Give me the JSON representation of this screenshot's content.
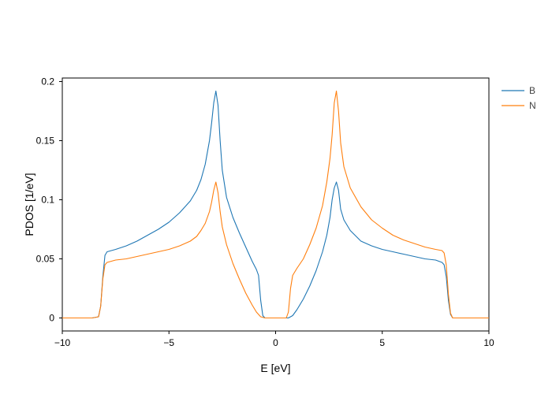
{
  "chart_data": {
    "type": "line",
    "title": "",
    "xlabel": "E [eV]",
    "ylabel": "PDOS [1/eV]",
    "xlim": [
      -10,
      10
    ],
    "ylim": [
      -0.011,
      0.203
    ],
    "grid": false,
    "legend_position": "right-top",
    "x_ticks": [
      {
        "value": -10,
        "label": "−10"
      },
      {
        "value": -5,
        "label": "−5"
      },
      {
        "value": 0,
        "label": "0"
      },
      {
        "value": 5,
        "label": "5"
      },
      {
        "value": 10,
        "label": "10"
      }
    ],
    "y_ticks": [
      {
        "value": 0,
        "label": "0"
      },
      {
        "value": 0.05,
        "label": "0.05"
      },
      {
        "value": 0.1,
        "label": "0.1"
      },
      {
        "value": 0.15,
        "label": "0.15"
      },
      {
        "value": 0.2,
        "label": "0.2"
      }
    ],
    "series": [
      {
        "name": "B",
        "color": "#1f77b4",
        "points": [
          [
            -10,
            0
          ],
          [
            -8.6,
            0
          ],
          [
            -8.3,
            0.001
          ],
          [
            -8.2,
            0.01
          ],
          [
            -8.1,
            0.035
          ],
          [
            -8.0,
            0.053
          ],
          [
            -7.9,
            0.056
          ],
          [
            -7.5,
            0.058
          ],
          [
            -7.0,
            0.061
          ],
          [
            -6.5,
            0.065
          ],
          [
            -6.0,
            0.07
          ],
          [
            -5.5,
            0.075
          ],
          [
            -5.0,
            0.081
          ],
          [
            -4.5,
            0.089
          ],
          [
            -4.0,
            0.099
          ],
          [
            -3.7,
            0.108
          ],
          [
            -3.5,
            0.117
          ],
          [
            -3.3,
            0.13
          ],
          [
            -3.1,
            0.15
          ],
          [
            -3.0,
            0.165
          ],
          [
            -2.9,
            0.182
          ],
          [
            -2.8,
            0.192
          ],
          [
            -2.7,
            0.18
          ],
          [
            -2.6,
            0.15
          ],
          [
            -2.5,
            0.125
          ],
          [
            -2.3,
            0.102
          ],
          [
            -2.0,
            0.085
          ],
          [
            -1.7,
            0.072
          ],
          [
            -1.4,
            0.06
          ],
          [
            -1.1,
            0.048
          ],
          [
            -0.9,
            0.041
          ],
          [
            -0.8,
            0.036
          ],
          [
            -0.7,
            0.015
          ],
          [
            -0.6,
            0.002
          ],
          [
            -0.5,
            0.0
          ],
          [
            0.0,
            0.0
          ],
          [
            0.4,
            0.0
          ],
          [
            0.6,
            0.0
          ],
          [
            0.8,
            0.002
          ],
          [
            1.0,
            0.007
          ],
          [
            1.3,
            0.016
          ],
          [
            1.6,
            0.027
          ],
          [
            1.9,
            0.04
          ],
          [
            2.2,
            0.056
          ],
          [
            2.4,
            0.07
          ],
          [
            2.55,
            0.085
          ],
          [
            2.65,
            0.1
          ],
          [
            2.75,
            0.11
          ],
          [
            2.85,
            0.115
          ],
          [
            2.95,
            0.108
          ],
          [
            3.05,
            0.092
          ],
          [
            3.2,
            0.083
          ],
          [
            3.5,
            0.074
          ],
          [
            4.0,
            0.065
          ],
          [
            4.5,
            0.061
          ],
          [
            5.0,
            0.058
          ],
          [
            5.5,
            0.056
          ],
          [
            6.0,
            0.054
          ],
          [
            6.5,
            0.052
          ],
          [
            7.0,
            0.05
          ],
          [
            7.5,
            0.049
          ],
          [
            7.8,
            0.047
          ],
          [
            7.9,
            0.045
          ],
          [
            8.0,
            0.035
          ],
          [
            8.1,
            0.015
          ],
          [
            8.2,
            0.003
          ],
          [
            8.3,
            0.0
          ],
          [
            10,
            0
          ]
        ]
      },
      {
        "name": "N",
        "color": "#ff7f0e",
        "points": [
          [
            -10,
            0
          ],
          [
            -8.6,
            0
          ],
          [
            -8.3,
            0.001
          ],
          [
            -8.2,
            0.01
          ],
          [
            -8.1,
            0.033
          ],
          [
            -8.0,
            0.045
          ],
          [
            -7.9,
            0.047
          ],
          [
            -7.5,
            0.049
          ],
          [
            -7.0,
            0.05
          ],
          [
            -6.5,
            0.052
          ],
          [
            -6.0,
            0.054
          ],
          [
            -5.5,
            0.056
          ],
          [
            -5.0,
            0.058
          ],
          [
            -4.5,
            0.061
          ],
          [
            -4.0,
            0.065
          ],
          [
            -3.7,
            0.069
          ],
          [
            -3.5,
            0.074
          ],
          [
            -3.3,
            0.08
          ],
          [
            -3.1,
            0.09
          ],
          [
            -3.0,
            0.098
          ],
          [
            -2.9,
            0.108
          ],
          [
            -2.8,
            0.115
          ],
          [
            -2.7,
            0.106
          ],
          [
            -2.6,
            0.09
          ],
          [
            -2.5,
            0.077
          ],
          [
            -2.3,
            0.062
          ],
          [
            -2.0,
            0.046
          ],
          [
            -1.7,
            0.033
          ],
          [
            -1.4,
            0.021
          ],
          [
            -1.1,
            0.011
          ],
          [
            -0.9,
            0.005
          ],
          [
            -0.7,
            0.001
          ],
          [
            -0.5,
            0.0
          ],
          [
            0.0,
            0.0
          ],
          [
            0.5,
            0.0
          ],
          [
            0.6,
            0.005
          ],
          [
            0.7,
            0.025
          ],
          [
            0.8,
            0.036
          ],
          [
            1.0,
            0.042
          ],
          [
            1.3,
            0.05
          ],
          [
            1.6,
            0.062
          ],
          [
            1.9,
            0.076
          ],
          [
            2.2,
            0.095
          ],
          [
            2.4,
            0.115
          ],
          [
            2.55,
            0.135
          ],
          [
            2.65,
            0.155
          ],
          [
            2.75,
            0.182
          ],
          [
            2.85,
            0.192
          ],
          [
            2.95,
            0.175
          ],
          [
            3.05,
            0.148
          ],
          [
            3.2,
            0.128
          ],
          [
            3.5,
            0.11
          ],
          [
            4.0,
            0.094
          ],
          [
            4.5,
            0.083
          ],
          [
            5.0,
            0.076
          ],
          [
            5.5,
            0.07
          ],
          [
            6.0,
            0.066
          ],
          [
            6.5,
            0.063
          ],
          [
            7.0,
            0.06
          ],
          [
            7.5,
            0.058
          ],
          [
            7.8,
            0.057
          ],
          [
            7.9,
            0.055
          ],
          [
            8.0,
            0.045
          ],
          [
            8.1,
            0.02
          ],
          [
            8.2,
            0.004
          ],
          [
            8.3,
            0.0
          ],
          [
            10,
            0
          ]
        ]
      }
    ]
  }
}
